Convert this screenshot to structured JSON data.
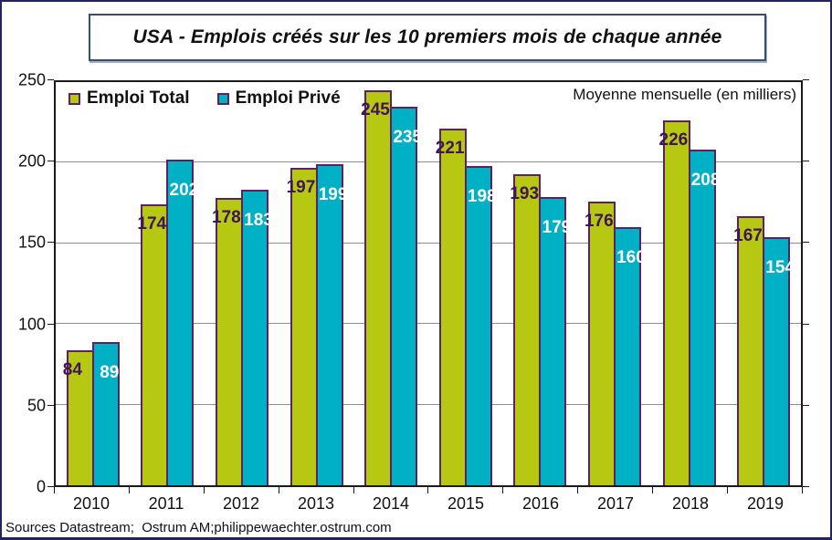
{
  "title": "USA - Emplois créés sur les 10 premiers mois de chaque année",
  "annotation": "Moyenne mensuelle (en milliers)",
  "source": "Sources Datastream;  Ostrum AM;philippewaechter.ostrum.com",
  "colors": {
    "emploi_total": "#b7c812",
    "emploi_prive": "#00b0c4",
    "bar_border": "#5c2162",
    "total_label_text": "#3f1458",
    "prive_label_text": "#ffffff",
    "gridline": "#8f8f8f",
    "plot_border": "#1a1a1a",
    "outer_frame": "#23235f"
  },
  "chart_data": {
    "type": "bar",
    "categories": [
      "2010",
      "2011",
      "2012",
      "2013",
      "2014",
      "2015",
      "2016",
      "2017",
      "2018",
      "2019"
    ],
    "series": [
      {
        "name": "Emploi Total",
        "color": "#b7c812",
        "label_color": "#3f1458",
        "values": [
          84,
          174,
          178,
          197,
          245,
          221,
          193,
          176,
          226,
          167
        ]
      },
      {
        "name": "Emploi Privé",
        "color": "#00b0c4",
        "label_color": "#ffffff",
        "values": [
          89,
          202,
          183,
          199,
          235,
          198,
          179,
          160,
          208,
          154
        ]
      }
    ],
    "title": "USA - Emplois créés sur les 10 premiers mois de chaque année",
    "subtitle": "Moyenne mensuelle (en milliers)",
    "xlabel": "",
    "ylabel": "",
    "ylim": [
      0,
      250
    ],
    "yticks": [
      0,
      50,
      100,
      150,
      200,
      250
    ],
    "grid": true,
    "legend_position": "top-left",
    "data_labels": true
  }
}
